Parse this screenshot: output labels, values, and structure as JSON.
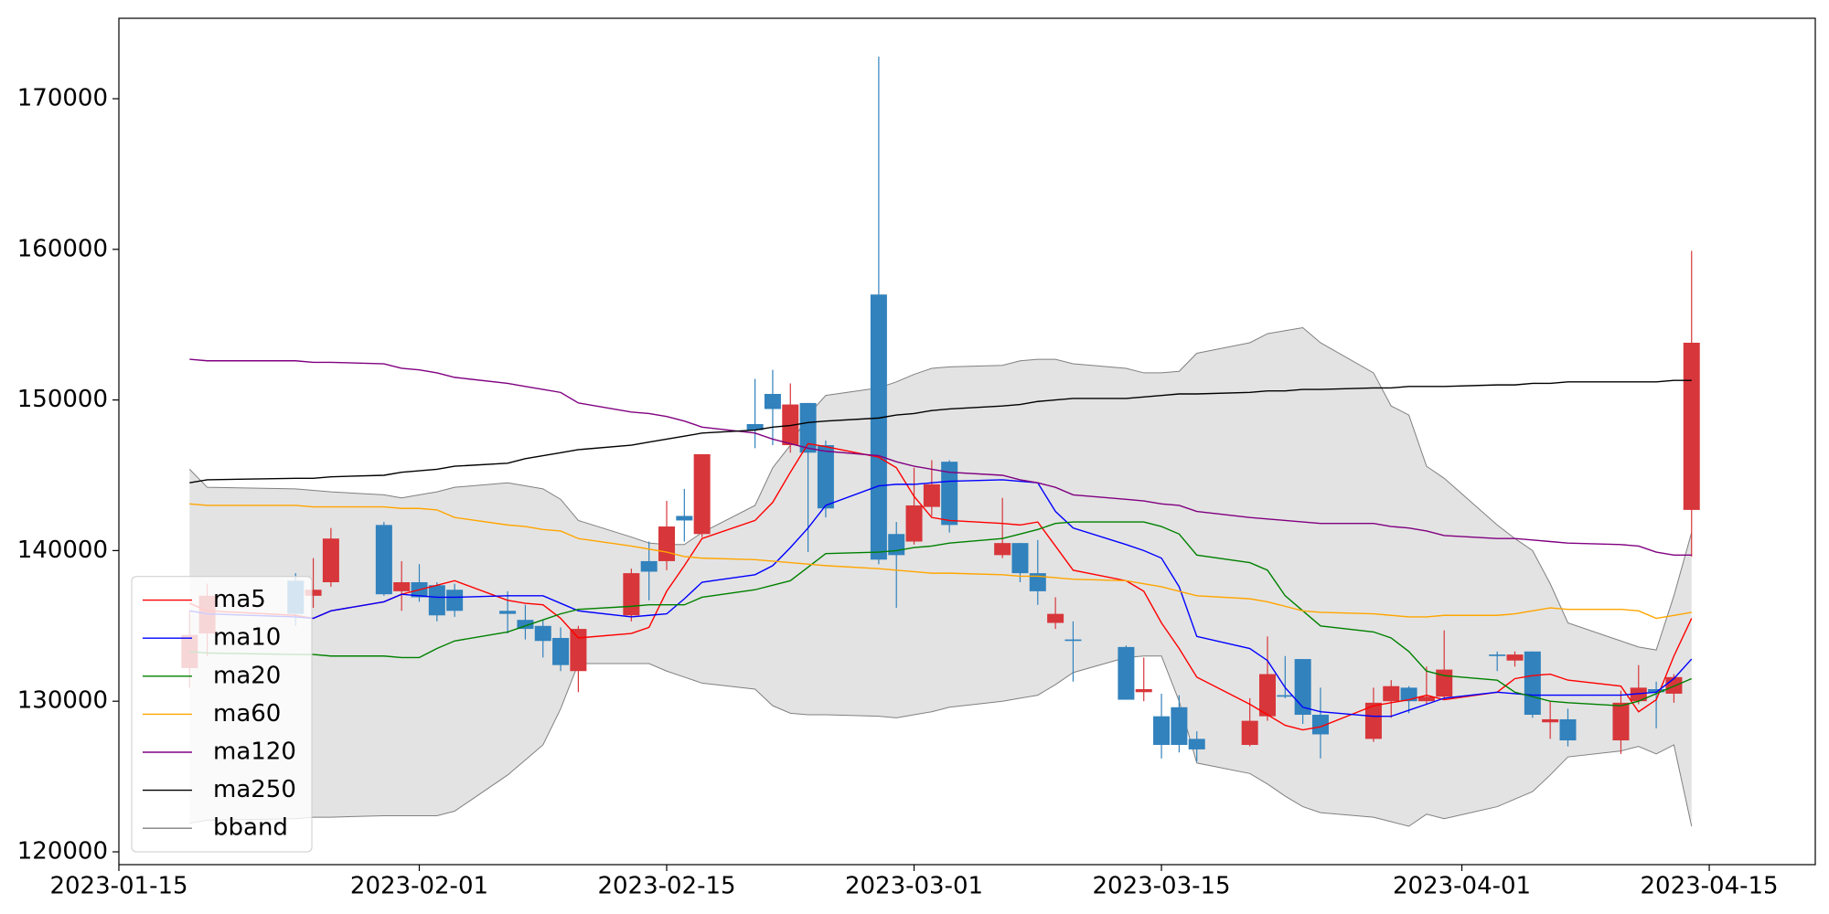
{
  "chart_data": {
    "type": "candlestick",
    "x": [
      "2023-01-19",
      "2023-01-20",
      "2023-01-25",
      "2023-01-26",
      "2023-01-27",
      "2023-01-30",
      "2023-01-31",
      "2023-02-01",
      "2023-02-02",
      "2023-02-03",
      "2023-02-06",
      "2023-02-07",
      "2023-02-08",
      "2023-02-09",
      "2023-02-10",
      "2023-02-13",
      "2023-02-14",
      "2023-02-15",
      "2023-02-16",
      "2023-02-17",
      "2023-02-20",
      "2023-02-21",
      "2023-02-22",
      "2023-02-23",
      "2023-02-24",
      "2023-02-27",
      "2023-02-28",
      "2023-03-01",
      "2023-03-02",
      "2023-03-03",
      "2023-03-06",
      "2023-03-07",
      "2023-03-08",
      "2023-03-09",
      "2023-03-10",
      "2023-03-13",
      "2023-03-14",
      "2023-03-15",
      "2023-03-16",
      "2023-03-17",
      "2023-03-20",
      "2023-03-21",
      "2023-03-22",
      "2023-03-23",
      "2023-03-24",
      "2023-03-27",
      "2023-03-28",
      "2023-03-29",
      "2023-03-30",
      "2023-03-31",
      "2023-04-03",
      "2023-04-04",
      "2023-04-05",
      "2023-04-06",
      "2023-04-07",
      "2023-04-10",
      "2023-04-11",
      "2023-04-12",
      "2023-04-13",
      "2023-04-14"
    ],
    "open": [
      132200,
      134500,
      138000,
      137000,
      137900,
      141700,
      137300,
      137900,
      137700,
      137400,
      136000,
      135400,
      135000,
      134200,
      132000,
      135700,
      139300,
      139300,
      142300,
      141100,
      148400,
      150400,
      147000,
      149800,
      147000,
      157000,
      141100,
      140600,
      142900,
      145900,
      139700,
      140500,
      138500,
      135200,
      134100,
      133600,
      130600,
      129000,
      129600,
      127500,
      127100,
      129000,
      130400,
      132800,
      129100,
      127500,
      130000,
      130900,
      130000,
      130300,
      133100,
      132700,
      133300,
      128600,
      128800,
      127400,
      130000,
      130800,
      130500,
      142700
    ],
    "high": [
      136000,
      137800,
      138500,
      139500,
      141500,
      141900,
      139300,
      139100,
      137900,
      137800,
      137300,
      136400,
      135400,
      134900,
      135000,
      138800,
      140600,
      143300,
      144100,
      146400,
      151400,
      152000,
      151100,
      149800,
      147300,
      172800,
      141900,
      145500,
      146000,
      146000,
      143500,
      140500,
      140700,
      136900,
      135300,
      133700,
      132900,
      130500,
      130400,
      128000,
      130200,
      134300,
      133000,
      132800,
      130900,
      130900,
      131400,
      131000,
      132300,
      134700,
      133300,
      133300,
      133300,
      130000,
      129500,
      130700,
      132400,
      131300,
      131800,
      159900
    ],
    "low": [
      130900,
      133000,
      135000,
      136200,
      137600,
      137000,
      136000,
      136600,
      135300,
      135600,
      134500,
      134100,
      132900,
      132000,
      130600,
      135300,
      136700,
      138700,
      140600,
      140900,
      146800,
      147000,
      146500,
      139900,
      142200,
      139100,
      136200,
      140400,
      142300,
      141200,
      139500,
      137900,
      136400,
      134800,
      131300,
      130100,
      130000,
      126200,
      126600,
      126000,
      127000,
      128700,
      130200,
      128500,
      126200,
      127300,
      128900,
      129200,
      129800,
      130100,
      132000,
      132300,
      128900,
      127500,
      127000,
      126500,
      129800,
      128200,
      129900,
      139600
    ],
    "close": [
      134400,
      137000,
      135800,
      137400,
      140800,
      137100,
      137900,
      136900,
      135700,
      136000,
      135800,
      134800,
      134000,
      132400,
      134800,
      138500,
      138600,
      141600,
      142000,
      146400,
      148000,
      149400,
      149700,
      146500,
      142800,
      139400,
      139700,
      143000,
      144400,
      141700,
      140500,
      138500,
      137300,
      135800,
      134000,
      130100,
      130800,
      127100,
      127100,
      126800,
      128700,
      131800,
      130300,
      129100,
      127800,
      129900,
      131000,
      130000,
      130300,
      132100,
      133000,
      133100,
      129100,
      128800,
      127400,
      129900,
      130900,
      130600,
      131600,
      153800
    ],
    "up_color": "#d7363a",
    "down_color": "#3182bd",
    "series": [
      {
        "name": "ma5",
        "color": "#ff0000",
        "values": [
          136500,
          136000,
          135700,
          135500,
          136000,
          136600,
          137100,
          137400,
          137700,
          138000,
          136700,
          136500,
          136400,
          135500,
          134200,
          134500,
          134900,
          137300,
          139000,
          140800,
          142000,
          143200,
          145200,
          147100,
          146900,
          146200,
          145500,
          143600,
          142200,
          142000,
          141800,
          141700,
          141900,
          140300,
          138700,
          138000,
          137300,
          135200,
          133500,
          131600,
          129800,
          129100,
          128400,
          128100,
          128300,
          129700,
          129900,
          130100,
          130400,
          130100,
          130600,
          131500,
          131700,
          131800,
          131400,
          131000,
          129300,
          130100,
          133000,
          135500
        ]
      },
      {
        "name": "ma10",
        "color": "#0000ff",
        "values": [
          136000,
          135800,
          135600,
          135500,
          136000,
          136600,
          137100,
          137000,
          136900,
          136900,
          137000,
          137000,
          137000,
          136500,
          136000,
          135600,
          135700,
          135800,
          136800,
          137900,
          138400,
          139000,
          140200,
          141500,
          143000,
          144300,
          144400,
          144400,
          144500,
          144600,
          144700,
          144600,
          144500,
          142600,
          141500,
          140400,
          140000,
          139500,
          137600,
          134300,
          133500,
          132700,
          130900,
          129600,
          129300,
          129000,
          129000,
          129400,
          129800,
          130200,
          130600,
          130500,
          130400,
          130400,
          130400,
          130400,
          130500,
          130600,
          131500,
          132800
        ]
      },
      {
        "name": "ma20",
        "color": "#008000",
        "values": [
          133300,
          133200,
          133100,
          133100,
          133000,
          133000,
          132900,
          132900,
          133500,
          134000,
          134600,
          135000,
          135400,
          135800,
          136100,
          136300,
          136400,
          136400,
          136400,
          136900,
          137400,
          137700,
          138000,
          138900,
          139800,
          139900,
          140000,
          140200,
          140300,
          140500,
          140800,
          141100,
          141400,
          141800,
          141900,
          141900,
          141900,
          141600,
          141100,
          139700,
          139200,
          138700,
          137000,
          136000,
          135000,
          134600,
          134200,
          133300,
          132000,
          131700,
          131400,
          130600,
          130300,
          130000,
          129900,
          129700,
          130000,
          130500,
          131000,
          131500
        ]
      },
      {
        "name": "ma60",
        "color": "#ffa500",
        "values": [
          143100,
          143000,
          143000,
          142900,
          142900,
          142900,
          142800,
          142800,
          142700,
          142200,
          141700,
          141600,
          141400,
          141300,
          140800,
          140300,
          140100,
          139900,
          139600,
          139500,
          139400,
          139300,
          139200,
          139100,
          139000,
          138800,
          138700,
          138600,
          138500,
          138500,
          138400,
          138300,
          138300,
          138200,
          138100,
          138000,
          137800,
          137600,
          137300,
          137000,
          136800,
          136600,
          136300,
          136000,
          135900,
          135800,
          135700,
          135600,
          135600,
          135700,
          135700,
          135800,
          136000,
          136200,
          136100,
          136100,
          136000,
          135500,
          135700,
          135900
        ]
      },
      {
        "name": "ma120",
        "color": "#800080",
        "values": [
          152700,
          152600,
          152600,
          152500,
          152500,
          152400,
          152100,
          152000,
          151800,
          151500,
          151100,
          150900,
          150700,
          150500,
          149800,
          149200,
          149100,
          148900,
          148600,
          148200,
          147800,
          147400,
          147100,
          146800,
          146600,
          146300,
          145900,
          145600,
          145400,
          145200,
          145000,
          144700,
          144500,
          144200,
          143700,
          143400,
          143300,
          143100,
          143000,
          142600,
          142200,
          142100,
          142000,
          141900,
          141800,
          141800,
          141600,
          141500,
          141300,
          141000,
          140800,
          140800,
          140700,
          140600,
          140500,
          140400,
          140300,
          139900,
          139700,
          139700
        ]
      },
      {
        "name": "ma250",
        "color": "#000000",
        "values": [
          144500,
          144700,
          144800,
          144800,
          144900,
          145000,
          145200,
          145300,
          145400,
          145600,
          145800,
          146100,
          146300,
          146500,
          146700,
          147000,
          147200,
          147400,
          147600,
          147800,
          148000,
          148200,
          148300,
          148500,
          148600,
          148800,
          149000,
          149100,
          149300,
          149400,
          149600,
          149700,
          149900,
          150000,
          150100,
          150100,
          150200,
          150300,
          150400,
          150400,
          150500,
          150600,
          150600,
          150700,
          150700,
          150800,
          150800,
          150900,
          150900,
          150900,
          151000,
          151000,
          151100,
          151100,
          151200,
          151200,
          151200,
          151200,
          151300,
          151300
        ]
      }
    ],
    "bband": {
      "name": "bband",
      "color": "#808080",
      "fill": "#e3e3e3",
      "upper": [
        145400,
        144200,
        144100,
        144000,
        143900,
        143700,
        143500,
        143700,
        143900,
        144200,
        144500,
        144300,
        144100,
        143400,
        142000,
        140900,
        140500,
        140400,
        140400,
        141200,
        143000,
        145500,
        147000,
        149000,
        150300,
        150800,
        151200,
        151700,
        152100,
        152200,
        152300,
        152600,
        152700,
        152700,
        152400,
        152100,
        151800,
        151800,
        151900,
        153100,
        153800,
        154400,
        154600,
        154800,
        153800,
        151800,
        149600,
        149000,
        145600,
        144800,
        141700,
        140800,
        140000,
        137800,
        135200,
        134000,
        133600,
        133400,
        137000,
        141200
      ],
      "lower": [
        121900,
        122100,
        122200,
        122300,
        122300,
        122400,
        122400,
        122400,
        122400,
        122700,
        125100,
        126100,
        127100,
        129500,
        132500,
        132500,
        132500,
        132000,
        131600,
        131200,
        130800,
        129700,
        129200,
        129100,
        129100,
        129000,
        128900,
        129100,
        129300,
        129600,
        130000,
        130200,
        130400,
        131100,
        131900,
        132900,
        133000,
        133000,
        130000,
        125900,
        125200,
        124500,
        123700,
        123000,
        122600,
        122300,
        122000,
        121700,
        122500,
        122200,
        123000,
        123500,
        124000,
        125100,
        126300,
        126700,
        127000,
        126500,
        127100,
        121700
      ]
    },
    "xlim": [
      "2023-01-15",
      "2023-04-21"
    ],
    "xticks": [
      "2023-01-15",
      "2023-02-01",
      "2023-02-15",
      "2023-03-01",
      "2023-03-15",
      "2023-04-01",
      "2023-04-15"
    ],
    "ylim": [
      119150,
      175340
    ],
    "yticks": [
      120000,
      130000,
      140000,
      150000,
      160000,
      170000
    ],
    "legend": "lower left"
  }
}
